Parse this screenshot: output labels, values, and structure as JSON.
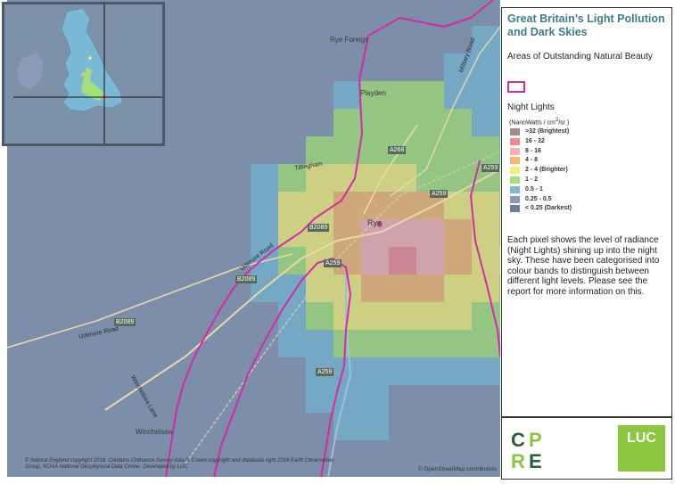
{
  "map": {
    "place_labels": [
      {
        "id": "rye-foreign",
        "text": "Rye Foreign"
      },
      {
        "id": "playden",
        "text": "Playden"
      },
      {
        "id": "rye",
        "text": "Rye"
      },
      {
        "id": "winchelsea",
        "text": "Winchelsea"
      },
      {
        "id": "udimore-road-1",
        "text": "Udimore Road"
      },
      {
        "id": "udimore-road-2",
        "text": "Udimore Road"
      },
      {
        "id": "tillingham",
        "text": "Tillingham"
      },
      {
        "id": "military-road",
        "text": "Military Road"
      },
      {
        "id": "winchelsea-lane",
        "text": "Winchelsea Lane"
      }
    ],
    "road_labels": [
      {
        "id": "a268",
        "text": "A268"
      },
      {
        "id": "a259-1",
        "text": "A259"
      },
      {
        "id": "a259-2",
        "text": "A259"
      },
      {
        "id": "a259-3",
        "text": "A259"
      },
      {
        "id": "a259-4",
        "text": "A259"
      },
      {
        "id": "b2089-1",
        "text": "B2089"
      },
      {
        "id": "b2089-2",
        "text": "B2089"
      },
      {
        "id": "b2089-3",
        "text": "B2089"
      }
    ],
    "attribution_left": "© Natural England copyright 2016. Contains Ordnance Survey data © Crown copyright and database right 2016 Earth Observation Group, NOAA National Geophysical Data Center. Developed by LUC",
    "attribution_right": "© OpenStreetMap contributors"
  },
  "panel": {
    "title": "Great Britain’s Light Pollution and Dark Skies",
    "aonb_label": "Areas of Outstanding Natural Beauty",
    "aonb_color": "#d42aa8",
    "night_lights_label": "Night Lights",
    "units_prefix": "(NanoWatts / cm",
    "units_sup": "2",
    "units_suffix": "/sr )",
    "legend": [
      {
        "label": ">32 (Brightest)",
        "color": "#a78a8c"
      },
      {
        "label": "16 - 32",
        "color": "#f08a8e"
      },
      {
        "label": "8 - 16",
        "color": "#f5b0b4"
      },
      {
        "label": "4 - 8",
        "color": "#f4b86e"
      },
      {
        "label": "2 - 4 (Brighter)",
        "color": "#f3f07a"
      },
      {
        "label": "1 - 2",
        "color": "#a4e07a"
      },
      {
        "label": "0.5 - 1",
        "color": "#79b9d6"
      },
      {
        "label": "0.25 - 0.5",
        "color": "#8a9ab8"
      },
      {
        "label": "< 0.25 (Darkest)",
        "color": "#6f7d96"
      }
    ],
    "description": "Each pixel shows the level of radiance (Night Lights) shining up into the night sky. These have been categorised into colour bands to distinguish between different light levels. Please see the report for more information on this."
  },
  "logos": {
    "cpre_letters": [
      "C",
      "P",
      "R",
      "E"
    ],
    "luc_text": "LUC",
    "luc_color": "#8cc63f"
  }
}
